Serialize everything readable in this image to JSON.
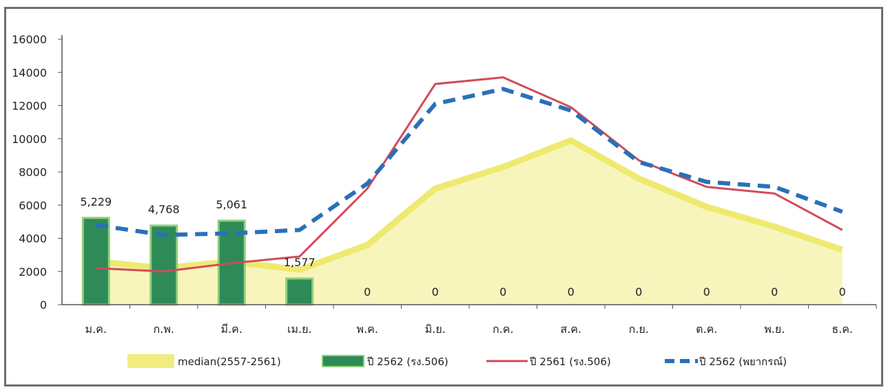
{
  "chart_data": {
    "type": "bar",
    "categories": [
      "ม.ค.",
      "ก.พ.",
      "มี.ค.",
      "เม.ย.",
      "พ.ค.",
      "มิ.ย.",
      "ก.ค.",
      "ส.ค.",
      "ก.ย.",
      "ต.ค.",
      "พ.ย.",
      "ธ.ค."
    ],
    "ylim": [
      0,
      16000
    ],
    "yticks": [
      0,
      2000,
      4000,
      6000,
      8000,
      10000,
      12000,
      14000,
      16000
    ],
    "grid": false,
    "legend_position": "bottom",
    "series": [
      {
        "name": "median(2557-2561)",
        "kind": "area",
        "color": "#ede96a",
        "values": [
          2600,
          2200,
          2600,
          2100,
          3600,
          7000,
          8300,
          9900,
          7600,
          5900,
          4700,
          3300
        ]
      },
      {
        "name": "ปี 2562 (รง.506)",
        "kind": "bar",
        "color": "#2e8b57",
        "values": [
          5229,
          4768,
          5061,
          1577,
          0,
          0,
          0,
          0,
          0,
          0,
          0,
          0
        ],
        "labels": [
          "5,229",
          "4,768",
          "5,061",
          "1,577",
          "0",
          "0",
          "0",
          "0",
          "0",
          "0",
          "0",
          "0"
        ]
      },
      {
        "name": "ปี 2561 (รง.506)",
        "kind": "line",
        "color": "#d24a5b",
        "values": [
          2200,
          2000,
          2500,
          2900,
          7000,
          13300,
          13700,
          11900,
          8700,
          7100,
          6700,
          4500
        ]
      },
      {
        "name": "ปี 2562 (พยากรณ์)",
        "kind": "dashed-line",
        "color": "#2a70b8",
        "values": [
          4800,
          4200,
          4300,
          4500,
          7300,
          12100,
          13000,
          11700,
          8600,
          7400,
          7100,
          5600
        ]
      }
    ]
  }
}
